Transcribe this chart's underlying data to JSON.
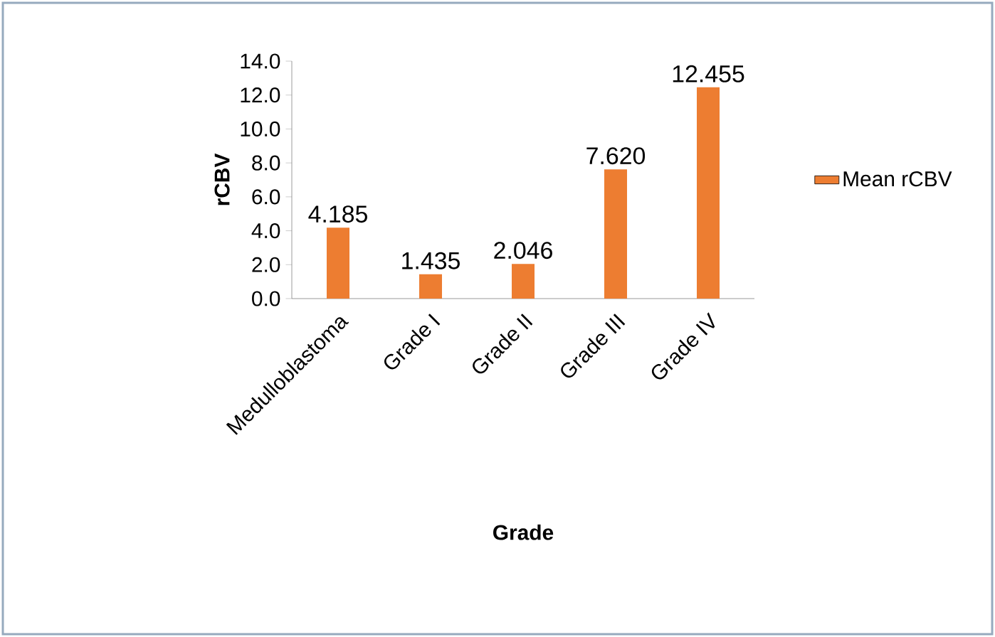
{
  "chart_data": {
    "type": "bar",
    "xlabel": "Grade",
    "ylabel": "rCBV",
    "categories": [
      "Medulloblastoma",
      "Grade I",
      "Grade II",
      "Grade III",
      "Grade IV"
    ],
    "series": [
      {
        "name": "Mean rCBV",
        "color": "#ed7d31",
        "values": [
          4.185,
          1.435,
          2.046,
          7.62,
          12.455
        ],
        "value_labels": [
          "4.185",
          "1.435",
          "2.046",
          "7.620",
          "12.455"
        ]
      }
    ],
    "ylim": [
      0,
      14
    ],
    "yticks": [
      {
        "value": 0,
        "label": "0.0"
      },
      {
        "value": 2,
        "label": "2.0"
      },
      {
        "value": 4,
        "label": "4.0"
      },
      {
        "value": 6,
        "label": "6.0"
      },
      {
        "value": 8,
        "label": "8.0"
      },
      {
        "value": 10,
        "label": "10.0"
      },
      {
        "value": 12,
        "label": "12.0"
      },
      {
        "value": 14,
        "label": "14.0"
      }
    ],
    "grid": false,
    "legend": "right"
  }
}
